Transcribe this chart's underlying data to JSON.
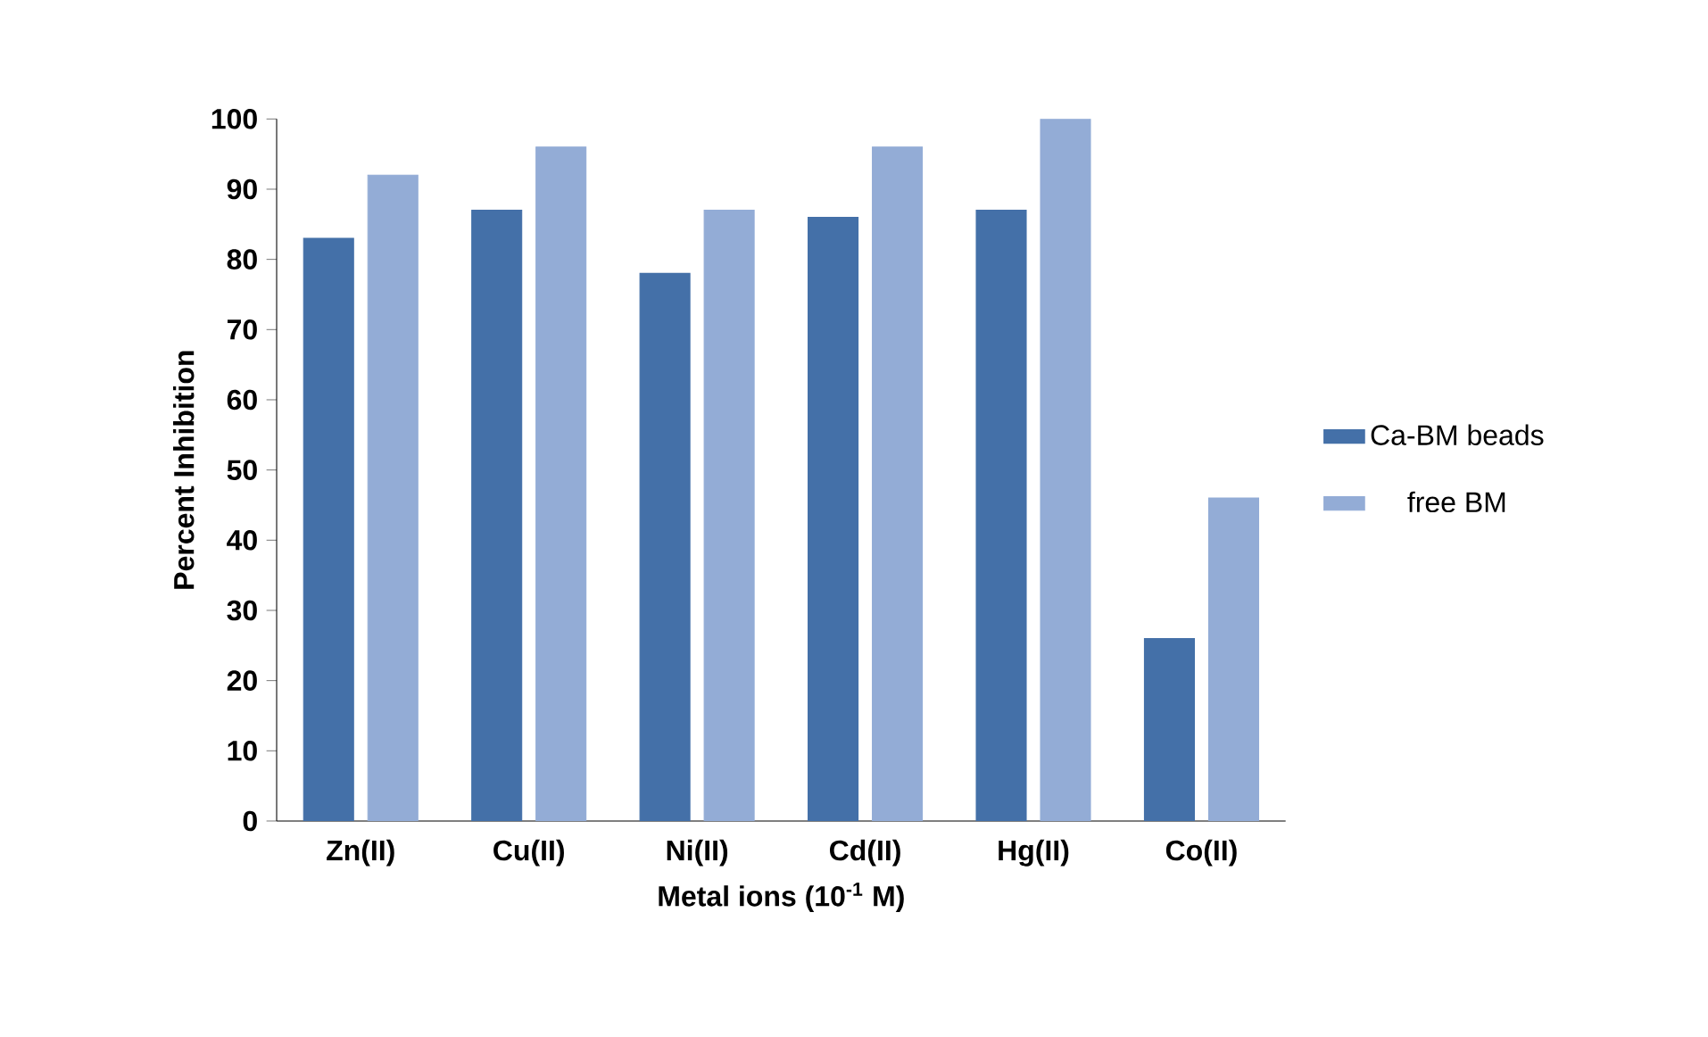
{
  "chart_data": {
    "type": "bar",
    "xlabel": "Metal ions (10$^{-1}$ M)",
    "ylabel": "Percent Inhibition",
    "categories": [
      "Zn(II)",
      "Cu(II)",
      "Ni(II)",
      "Cd(II)",
      "Hg(II)",
      "Co(II)"
    ],
    "series": [
      {
        "name": "Ca-BM beads",
        "color": "#4470a8",
        "values": [
          83,
          87,
          78,
          86,
          87,
          26
        ]
      },
      {
        "name": "free BM",
        "color": "#93acd6",
        "values": [
          92,
          96,
          87,
          96,
          100,
          46
        ]
      }
    ],
    "ylim": [
      0,
      100
    ],
    "yticks": [
      0,
      10,
      20,
      30,
      40,
      50,
      60,
      70,
      80,
      90,
      100
    ],
    "grid": false,
    "legend": "right"
  }
}
